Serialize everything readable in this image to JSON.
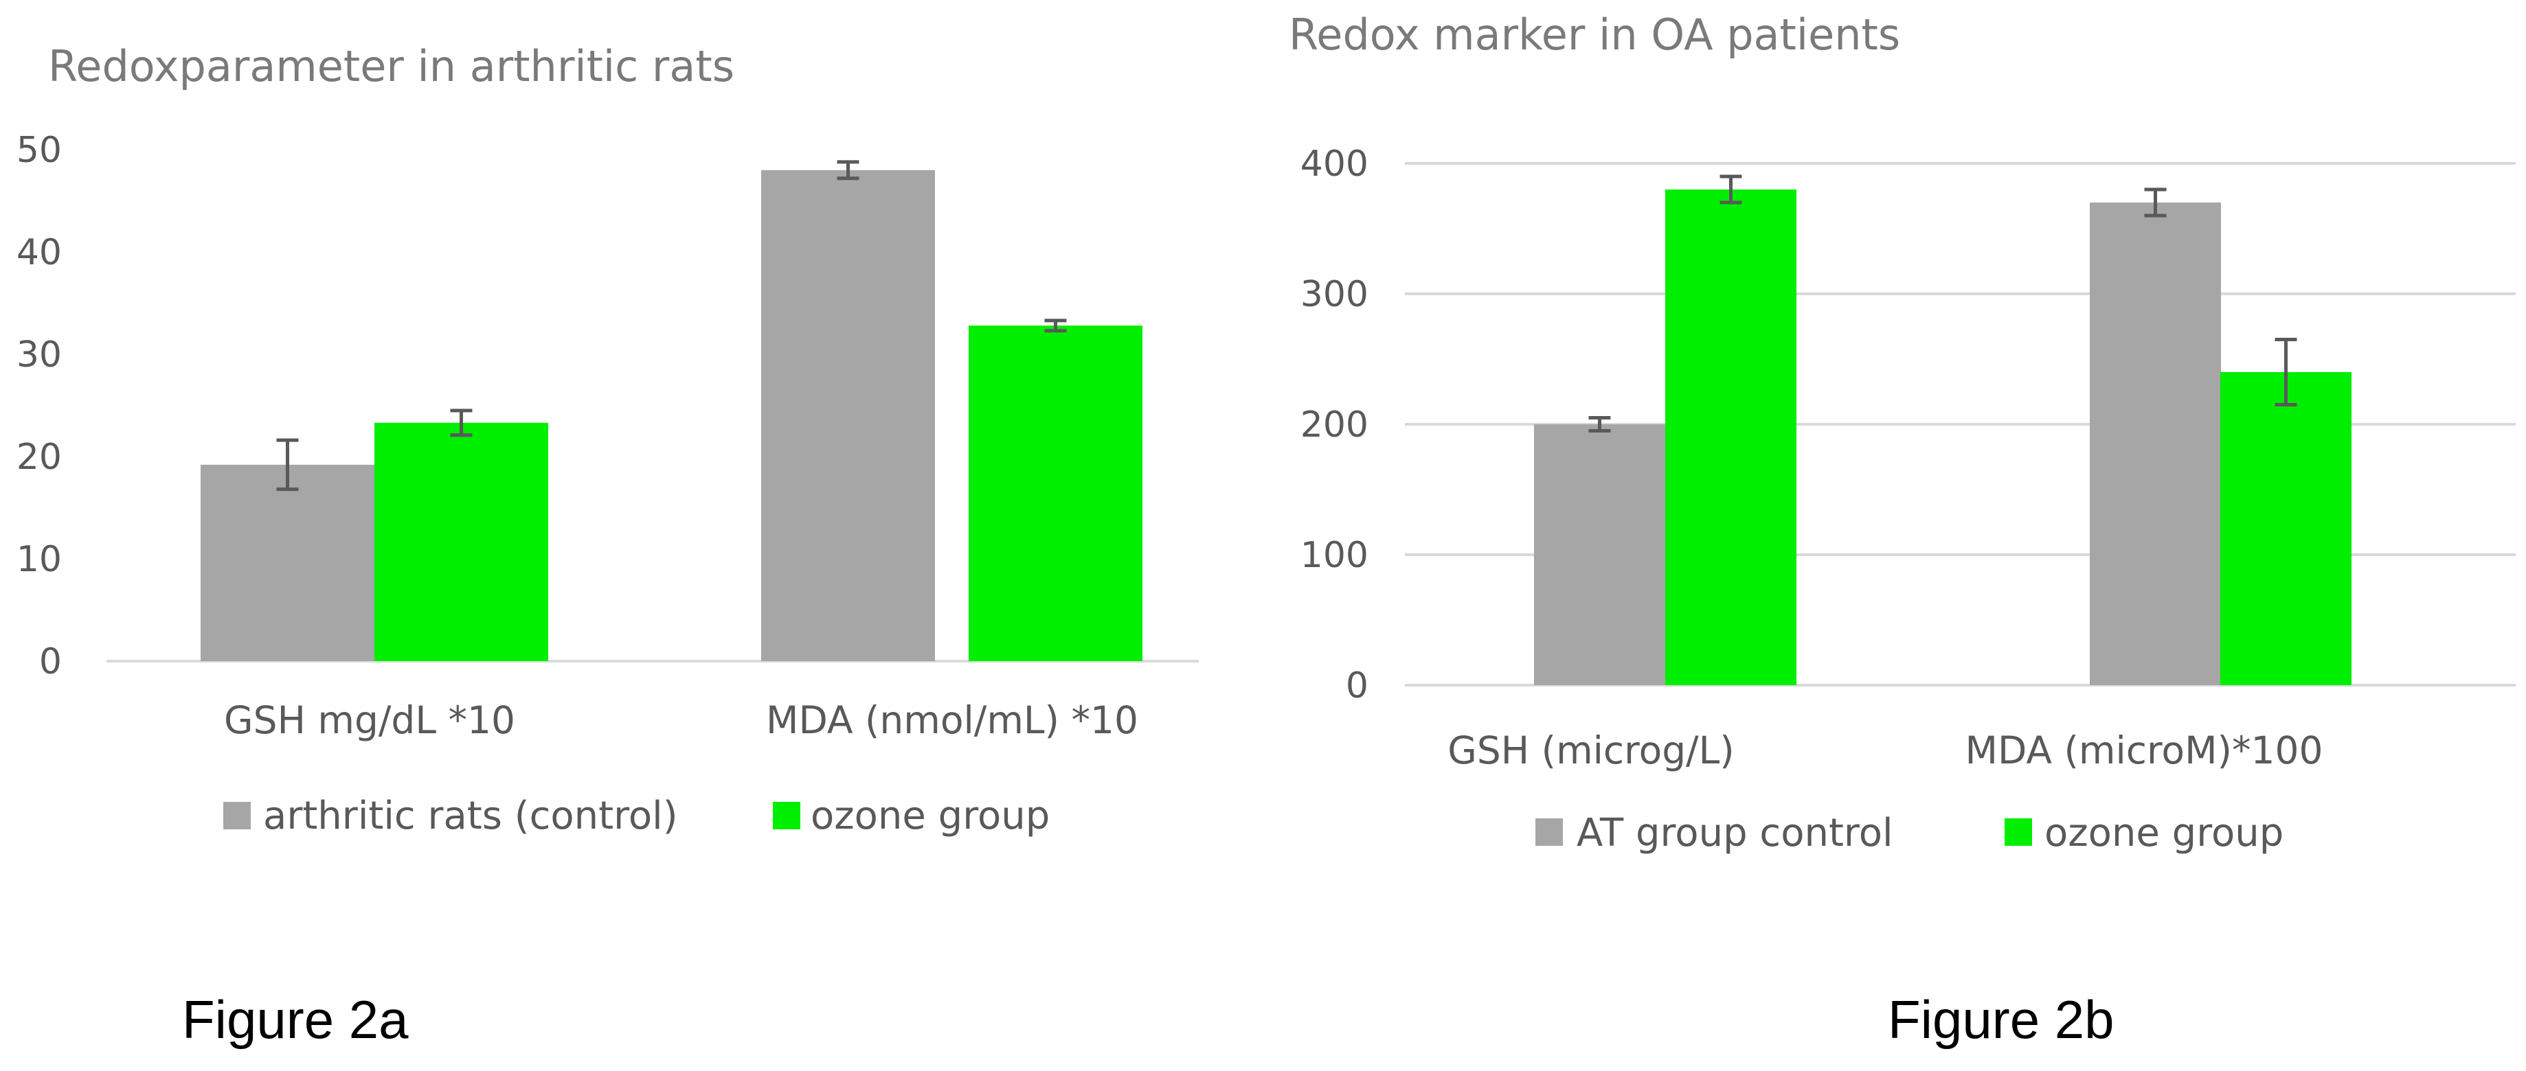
{
  "figure_labels": [
    "Figure 2a",
    "Figure 2b"
  ],
  "colors": {
    "control": "#a6a6a6",
    "ozone": "#00ee00",
    "grid": "#d9d9d9",
    "text": "#595959",
    "title": "#7a7a7a"
  },
  "chart_data": [
    {
      "type": "bar",
      "title": "Redoxparameter in arthritic rats",
      "categories": [
        "GSH mg/dL *10",
        "MDA (nmol/mL) *10"
      ],
      "series": [
        {
          "name": "arthritic rats (control)",
          "color": "#a6a6a6",
          "values": [
            19.2,
            48.0
          ],
          "errors": [
            2.4,
            0.8
          ]
        },
        {
          "name": "ozone group",
          "color": "#00ee00",
          "values": [
            23.3,
            32.8
          ],
          "errors": [
            1.2,
            0.5
          ]
        }
      ],
      "ylim": [
        0,
        50
      ],
      "yticks": [
        0,
        10,
        20,
        30,
        40,
        50
      ],
      "grid": false,
      "legend": "bottom"
    },
    {
      "type": "bar",
      "title": "Redox marker in OA patients",
      "categories": [
        "GSH (microg/L)",
        "MDA (microM)*100"
      ],
      "series": [
        {
          "name": "AT group control",
          "color": "#a6a6a6",
          "values": [
            200,
            370
          ],
          "errors": [
            5,
            10
          ]
        },
        {
          "name": "ozone group",
          "color": "#00ee00",
          "values": [
            380,
            240
          ],
          "errors": [
            10,
            25
          ]
        }
      ],
      "ylim": [
        0,
        400
      ],
      "yticks": [
        0,
        100,
        200,
        300,
        400
      ],
      "grid": true,
      "legend": "bottom"
    }
  ]
}
